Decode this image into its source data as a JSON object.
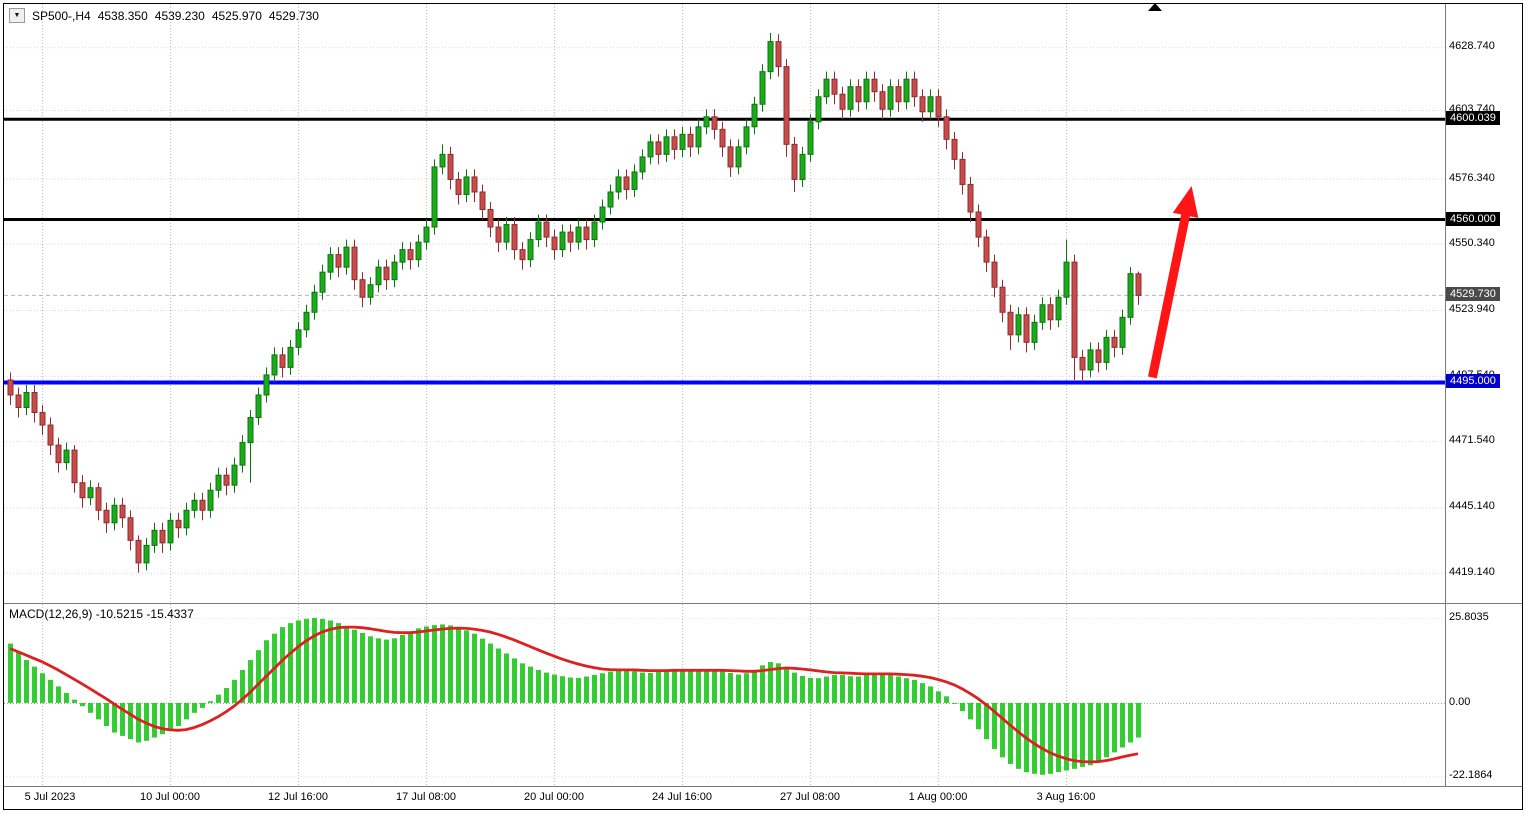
{
  "header": {
    "symbol": "SP500-,H4",
    "open": "4538.350",
    "high": "4539.230",
    "low": "4525.970",
    "close": "4529.730"
  },
  "colors": {
    "bull_fill": "#1aab1a",
    "bull_stroke": "#0c750c",
    "bear_fill": "#c94b4b",
    "bear_stroke": "#8f2d2d",
    "macd_bar": "#33cc33",
    "signal_line": "#dd2020",
    "grid_v": "#bdbdbd",
    "grid_h": "#d8d8d8",
    "level_black": "#000000",
    "level_blue": "#0000ff",
    "arrow": "#ff1515",
    "border": "#000000",
    "separator": "#7a7a7a",
    "current_label_bg": "#4a4a4a",
    "black_label_bg": "#000000",
    "blue_label_bg": "#0000cc"
  },
  "price_axis_ticks": [
    {
      "label": "4628.740",
      "value": 4628.74
    },
    {
      "label": "4603.740",
      "value": 4603.74
    },
    {
      "label": "4576.340",
      "value": 4576.34
    },
    {
      "label": "4550.340",
      "value": 4550.34
    },
    {
      "label": "4523.940",
      "value": 4523.94
    },
    {
      "label": "4497.540",
      "value": 4497.54
    },
    {
      "label": "4471.540",
      "value": 4471.54
    },
    {
      "label": "4445.140",
      "value": 4445.14
    },
    {
      "label": "4419.140",
      "value": 4419.14
    }
  ],
  "level_lines": [
    {
      "label": "4600.039",
      "value": 4600.039,
      "color": "#000000",
      "width": 3,
      "label_bg": "#000000"
    },
    {
      "label": "4560.000",
      "value": 4560.0,
      "color": "#000000",
      "width": 3,
      "label_bg": "#000000"
    },
    {
      "label": "4495.000",
      "value": 4495.0,
      "color": "#0000ff",
      "width": 4,
      "label_bg": "#0000cc"
    }
  ],
  "current_price": {
    "label": "4529.730",
    "value": 4529.73,
    "label_bg": "#4a4a4a"
  },
  "time_axis": [
    {
      "label": "5 Jul 2023",
      "bar": 4
    },
    {
      "label": "10 Jul 00:00",
      "bar": 20
    },
    {
      "label": "12 Jul 16:00",
      "bar": 36
    },
    {
      "label": "17 Jul 08:00",
      "bar": 52
    },
    {
      "label": "20 Jul 00:00",
      "bar": 68
    },
    {
      "label": "24 Jul 16:00",
      "bar": 84
    },
    {
      "label": "27 Jul 08:00",
      "bar": 100
    },
    {
      "label": "1 Aug 00:00",
      "bar": 116
    },
    {
      "label": "3 Aug 16:00",
      "bar": 132
    }
  ],
  "macd_panel": {
    "label": "MACD(12,26,9) -10.5215 -15.4337",
    "ticks": [
      {
        "label": "25.8035",
        "value": 25.8035
      },
      {
        "label": "0.00",
        "value": 0
      },
      {
        "label": "-22.1864",
        "value": -22.1864
      }
    ]
  },
  "chart_data": {
    "type": "candlestick",
    "symbol": "SP500-",
    "timeframe": "H4",
    "title": "SP500-,H4",
    "current_ohlc": {
      "open": 4538.35,
      "high": 4539.23,
      "low": 4525.97,
      "close": 4529.73
    },
    "price_range": [
      4407,
      4646
    ],
    "grid": "dotted",
    "levels": [
      4600.039,
      4560.0,
      4495.0
    ],
    "candles": [
      [
        4496,
        4499,
        4486,
        4490
      ],
      [
        4490,
        4493,
        4481,
        4485
      ],
      [
        4485,
        4494,
        4482,
        4491
      ],
      [
        4491,
        4494,
        4479,
        4483
      ],
      [
        4483,
        4486,
        4474,
        4478
      ],
      [
        4478,
        4481,
        4466,
        4470
      ],
      [
        4470,
        4473,
        4459,
        4463
      ],
      [
        4463,
        4471,
        4460,
        4468
      ],
      [
        4468,
        4470,
        4451,
        4455
      ],
      [
        4455,
        4458,
        4445,
        4449
      ],
      [
        4449,
        4456,
        4446,
        4453
      ],
      [
        4453,
        4455,
        4440,
        4444
      ],
      [
        4444,
        4447,
        4435,
        4439
      ],
      [
        4439,
        4449,
        4436,
        4446
      ],
      [
        4446,
        4449,
        4437,
        4441
      ],
      [
        4441,
        4444,
        4428,
        4432
      ],
      [
        4432,
        4434,
        4419.1,
        4423
      ],
      [
        4423,
        4433,
        4420,
        4430
      ],
      [
        4430,
        4439,
        4427,
        4436
      ],
      [
        4436,
        4439,
        4427,
        4431
      ],
      [
        4431,
        4443,
        4428,
        4440
      ],
      [
        4440,
        4443,
        4433,
        4437
      ],
      [
        4437,
        4447,
        4434,
        4444
      ],
      [
        4444,
        4451,
        4441,
        4448
      ],
      [
        4448,
        4451,
        4440,
        4444
      ],
      [
        4444,
        4455,
        4441,
        4452
      ],
      [
        4452,
        4461,
        4449,
        4458
      ],
      [
        4458,
        4461,
        4450,
        4454
      ],
      [
        4454,
        4465,
        4451,
        4462
      ],
      [
        4462,
        4474,
        4459,
        4471
      ],
      [
        4471,
        4484,
        4455,
        4481
      ],
      [
        4481,
        4493,
        4478,
        4490
      ],
      [
        4490,
        4501,
        4487,
        4498
      ],
      [
        4498,
        4509,
        4495,
        4506
      ],
      [
        4506,
        4509,
        4497,
        4501
      ],
      [
        4501,
        4512,
        4498,
        4509
      ],
      [
        4509,
        4519,
        4506,
        4516
      ],
      [
        4516,
        4526,
        4513,
        4523
      ],
      [
        4523,
        4534,
        4520,
        4531
      ],
      [
        4531,
        4542,
        4528,
        4539
      ],
      [
        4539,
        4549,
        4536,
        4546
      ],
      [
        4546,
        4549,
        4537,
        4541
      ],
      [
        4541,
        4552,
        4538,
        4549
      ],
      [
        4549,
        4552,
        4532,
        4536
      ],
      [
        4536,
        4539,
        4525,
        4529
      ],
      [
        4529,
        4537,
        4526,
        4534
      ],
      [
        4534,
        4544,
        4531,
        4541
      ],
      [
        4541,
        4544,
        4532,
        4536
      ],
      [
        4536,
        4546,
        4533,
        4543
      ],
      [
        4543,
        4551,
        4540,
        4548
      ],
      [
        4548,
        4551,
        4540,
        4544
      ],
      [
        4544,
        4554,
        4541,
        4551
      ],
      [
        4551,
        4560,
        4548,
        4557
      ],
      [
        4557,
        4584,
        4554,
        4581
      ],
      [
        4581,
        4590,
        4578,
        4586
      ],
      [
        4586,
        4589,
        4572,
        4576
      ],
      [
        4576,
        4579,
        4566,
        4570
      ],
      [
        4570,
        4580,
        4567,
        4577
      ],
      [
        4577,
        4580,
        4567,
        4571
      ],
      [
        4571,
        4574,
        4560,
        4564
      ],
      [
        4564,
        4567,
        4553,
        4557
      ],
      [
        4557,
        4560,
        4547,
        4551
      ],
      [
        4551,
        4561,
        4548,
        4558
      ],
      [
        4558,
        4561,
        4544,
        4548
      ],
      [
        4548,
        4551,
        4540,
        4544
      ],
      [
        4544,
        4555,
        4541,
        4552
      ],
      [
        4552,
        4562,
        4549,
        4559
      ],
      [
        4559,
        4562,
        4549,
        4553
      ],
      [
        4553,
        4556,
        4544,
        4548
      ],
      [
        4548,
        4558,
        4545,
        4555
      ],
      [
        4555,
        4558,
        4547,
        4551
      ],
      [
        4551,
        4560,
        4548,
        4557
      ],
      [
        4557,
        4560,
        4548,
        4552
      ],
      [
        4552,
        4562,
        4549,
        4559
      ],
      [
        4559,
        4568,
        4556,
        4565
      ],
      [
        4565,
        4574,
        4562,
        4571
      ],
      [
        4571,
        4580,
        4568,
        4577
      ],
      [
        4577,
        4580,
        4568,
        4572
      ],
      [
        4572,
        4582,
        4569,
        4579
      ],
      [
        4579,
        4588,
        4576,
        4585
      ],
      [
        4585,
        4594,
        4582,
        4591
      ],
      [
        4591,
        4594,
        4582,
        4586
      ],
      [
        4586,
        4596,
        4583,
        4593
      ],
      [
        4593,
        4596,
        4584,
        4588
      ],
      [
        4588,
        4597,
        4585,
        4594
      ],
      [
        4594,
        4597,
        4585,
        4589
      ],
      [
        4589,
        4600,
        4586,
        4597
      ],
      [
        4597,
        4604,
        4594,
        4601
      ],
      [
        4601,
        4604,
        4592,
        4596
      ],
      [
        4596,
        4599,
        4585,
        4589
      ],
      [
        4589,
        4592,
        4577,
        4581
      ],
      [
        4581,
        4592,
        4578,
        4589
      ],
      [
        4589,
        4600,
        4586,
        4597
      ],
      [
        4597,
        4609,
        4594,
        4606
      ],
      [
        4606,
        4622,
        4603,
        4619
      ],
      [
        4619,
        4634.5,
        4616,
        4631
      ],
      [
        4631,
        4634,
        4617,
        4621
      ],
      [
        4621,
        4624,
        4585,
        4590
      ],
      [
        4590,
        4593,
        4571,
        4576
      ],
      [
        4576,
        4589,
        4573,
        4586
      ],
      [
        4586,
        4602,
        4583,
        4599
      ],
      [
        4599,
        4612,
        4596,
        4609
      ],
      [
        4609,
        4619,
        4606,
        4616
      ],
      [
        4616,
        4619,
        4606,
        4610
      ],
      [
        4610,
        4613,
        4600,
        4604
      ],
      [
        4604,
        4616,
        4601,
        4613
      ],
      [
        4613,
        4616,
        4603,
        4607
      ],
      [
        4607,
        4619,
        4604,
        4616
      ],
      [
        4616,
        4619,
        4607,
        4611
      ],
      [
        4611,
        4614,
        4600,
        4604
      ],
      [
        4604,
        4616,
        4601,
        4613
      ],
      [
        4613,
        4616,
        4603,
        4607
      ],
      [
        4607,
        4619,
        4604,
        4616
      ],
      [
        4616,
        4619,
        4605,
        4609
      ],
      [
        4609,
        4612,
        4599,
        4603
      ],
      [
        4603,
        4612,
        4600,
        4609
      ],
      [
        4609,
        4612,
        4597,
        4601
      ],
      [
        4601,
        4604,
        4588,
        4592
      ],
      [
        4592,
        4595,
        4580,
        4584
      ],
      [
        4584,
        4587,
        4570,
        4574
      ],
      [
        4574,
        4577,
        4559,
        4563
      ],
      [
        4563,
        4566,
        4549,
        4553
      ],
      [
        4553,
        4556,
        4539,
        4543
      ],
      [
        4543,
        4546,
        4529,
        4533
      ],
      [
        4533,
        4536,
        4519,
        4523
      ],
      [
        4523,
        4526,
        4508,
        4514
      ],
      [
        4514,
        4525,
        4511,
        4522
      ],
      [
        4522,
        4525,
        4507,
        4511
      ],
      [
        4511,
        4522,
        4508,
        4519
      ],
      [
        4519,
        4529,
        4516,
        4526
      ],
      [
        4526,
        4529,
        4516,
        4520
      ],
      [
        4520,
        4532,
        4517,
        4529
      ],
      [
        4529,
        4552,
        4526,
        4543
      ],
      [
        4543,
        4546,
        4496,
        4505
      ],
      [
        4505,
        4508,
        4495.1,
        4500
      ],
      [
        4500,
        4511,
        4497,
        4508
      ],
      [
        4508,
        4511,
        4499,
        4503
      ],
      [
        4503,
        4516,
        4500,
        4513
      ],
      [
        4513,
        4516,
        4505,
        4509
      ],
      [
        4509,
        4524,
        4506,
        4521
      ],
      [
        4521,
        4541,
        4518,
        4538.4
      ],
      [
        4538.35,
        4539.23,
        4525.97,
        4529.73
      ]
    ],
    "macd": {
      "params": "12,26,9",
      "macd_value": -10.5215,
      "signal_value": -15.4337,
      "range": [
        -25.2,
        30
      ],
      "histogram": [
        18,
        15.5,
        13,
        11,
        9,
        7,
        5,
        3,
        1,
        -1,
        -3,
        -5,
        -7,
        -9,
        -10,
        -11,
        -12,
        -11.5,
        -10.5,
        -9.5,
        -8.5,
        -7,
        -5,
        -3,
        -1.5,
        0.5,
        2.5,
        4.5,
        7,
        10,
        13,
        16,
        19,
        21,
        23,
        24.2,
        25,
        25.5,
        25.8,
        25.5,
        25,
        24.2,
        23.2,
        22.2,
        21.2,
        20.2,
        19.6,
        19.2,
        19.6,
        20.6,
        21.6,
        22.6,
        23.2,
        23.6,
        23.8,
        23.5,
        23,
        22,
        21,
        19.5,
        18,
        16.5,
        15,
        13.5,
        12,
        11,
        10,
        9.2,
        8.6,
        8.1,
        7.7,
        7.6,
        8,
        8.5,
        9,
        9.5,
        10,
        10,
        9.6,
        9.2,
        9.1,
        9.5,
        10,
        10.1,
        10,
        9.6,
        9.6,
        10,
        10,
        9.6,
        9.1,
        8.6,
        9,
        10,
        11.4,
        12.4,
        12,
        10.6,
        9.2,
        8.2,
        7.6,
        7.5,
        8,
        8.5,
        8.5,
        8.1,
        8,
        8.5,
        9,
        9,
        8.5,
        8,
        7.5,
        7,
        6,
        5,
        3.5,
        2,
        0,
        -2.5,
        -5,
        -8,
        -11,
        -14,
        -16.5,
        -18.5,
        -20,
        -21,
        -21.5,
        -21.8,
        -21.5,
        -21,
        -20.5,
        -20,
        -19.4,
        -18.9,
        -18,
        -16.5,
        -15,
        -13.5,
        -12,
        -10.5
      ],
      "signal": [
        16.5,
        15.5,
        14.5,
        13.5,
        12.5,
        11.3,
        10,
        8.6,
        7.2,
        5.8,
        4.3,
        2.8,
        1.3,
        -0.3,
        -1.9,
        -3.4,
        -4.9,
        -6.1,
        -7.1,
        -7.8,
        -8.2,
        -8.3,
        -8.1,
        -7.5,
        -6.6,
        -5.5,
        -4.2,
        -2.7,
        -1,
        1,
        3.2,
        5.6,
        8,
        10.4,
        12.8,
        15,
        17,
        18.8,
        20.3,
        21.5,
        22.3,
        22.8,
        23,
        23,
        22.8,
        22.5,
        22.1,
        21.7,
        21.4,
        21.3,
        21.3,
        21.5,
        21.8,
        22.1,
        22.4,
        22.6,
        22.7,
        22.6,
        22.4,
        22,
        21.5,
        20.8,
        20,
        19.1,
        18.1,
        17.1,
        16.1,
        15.1,
        14.2,
        13.3,
        12.5,
        11.8,
        11.2,
        10.7,
        10.3,
        10.1,
        10,
        10,
        10,
        9.9,
        9.8,
        9.8,
        9.8,
        9.9,
        9.9,
        9.9,
        9.9,
        9.9,
        9.9,
        9.9,
        9.8,
        9.7,
        9.6,
        9.6,
        9.8,
        10.1,
        10.4,
        10.6,
        10.5,
        10.3,
        10,
        9.7,
        9.4,
        9.2,
        9.1,
        9,
        8.9,
        8.8,
        8.8,
        8.8,
        8.8,
        8.7,
        8.6,
        8.4,
        8.1,
        7.7,
        7.1,
        6.4,
        5.5,
        4.3,
        2.9,
        1.3,
        -0.5,
        -2.5,
        -4.6,
        -6.7,
        -8.7,
        -10.6,
        -12.3,
        -13.8,
        -15.1,
        -16.1,
        -16.9,
        -17.5,
        -17.8,
        -17.9,
        -17.8,
        -17.5,
        -17,
        -16.4,
        -15.9,
        -15.43
      ]
    },
    "annotations": [
      {
        "type": "arrow",
        "direction": "up",
        "color": "#ff1515",
        "from": {
          "bar": 142.8,
          "price": 4497
        },
        "to": {
          "bar": 147.7,
          "price": 4573.4
        }
      }
    ]
  }
}
